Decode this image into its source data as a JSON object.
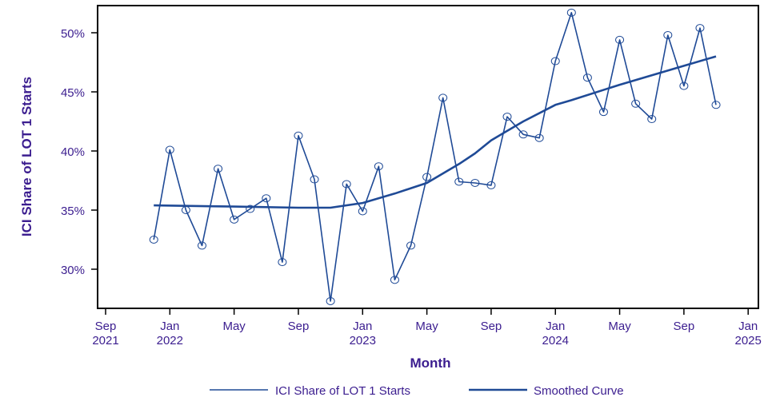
{
  "chart_data": {
    "type": "line",
    "title": "",
    "xlabel": "Month",
    "ylabel": "ICI Share of LOT 1 Starts",
    "x_ticks": [
      {
        "month": "2021-09",
        "label1": "Sep",
        "label2": "2021"
      },
      {
        "month": "2022-01",
        "label1": "Jan",
        "label2": "2022"
      },
      {
        "month": "2022-05",
        "label1": "May",
        "label2": ""
      },
      {
        "month": "2022-09",
        "label1": "Sep",
        "label2": ""
      },
      {
        "month": "2023-01",
        "label1": "Jan",
        "label2": "2023"
      },
      {
        "month": "2023-05",
        "label1": "May",
        "label2": ""
      },
      {
        "month": "2023-09",
        "label1": "Sep",
        "label2": ""
      },
      {
        "month": "2024-01",
        "label1": "Jan",
        "label2": "2024"
      },
      {
        "month": "2024-05",
        "label1": "May",
        "label2": ""
      },
      {
        "month": "2024-09",
        "label1": "Sep",
        "label2": ""
      },
      {
        "month": "2025-01",
        "label1": "Jan",
        "label2": "2025"
      }
    ],
    "y_ticks": [
      30,
      35,
      40,
      45,
      50
    ],
    "y_tick_labels": [
      "30%",
      "35%",
      "40%",
      "45%",
      "50%"
    ],
    "ylim": [
      26.7,
      52.3
    ],
    "xlim": [
      "2021-08",
      "2025-01"
    ],
    "grid": false,
    "legend_position": "bottom",
    "colors": {
      "text": "#3b1d8f",
      "series": "#1f4a96",
      "axis": "#000000"
    },
    "series": [
      {
        "name": "ICI Share of LOT 1 Starts",
        "marker": "circle",
        "x": [
          "2021-12",
          "2022-01",
          "2022-02",
          "2022-03",
          "2022-04",
          "2022-05",
          "2022-06",
          "2022-07",
          "2022-08",
          "2022-09",
          "2022-10",
          "2022-11",
          "2022-12",
          "2023-01",
          "2023-02",
          "2023-03",
          "2023-04",
          "2023-05",
          "2023-06",
          "2023-07",
          "2023-08",
          "2023-09",
          "2023-10",
          "2023-11",
          "2023-12",
          "2024-01",
          "2024-02",
          "2024-03",
          "2024-04",
          "2024-05",
          "2024-06",
          "2024-07",
          "2024-08",
          "2024-09",
          "2024-10",
          "2024-11"
        ],
        "values": [
          32.5,
          40.1,
          35.0,
          32.0,
          38.5,
          34.2,
          35.1,
          36.0,
          30.6,
          41.3,
          37.6,
          27.3,
          37.2,
          34.9,
          38.7,
          29.1,
          32.0,
          37.8,
          44.5,
          37.4,
          37.3,
          37.1,
          42.9,
          41.4,
          41.1,
          47.6,
          51.7,
          46.2,
          43.3,
          49.4,
          44.0,
          42.7,
          49.8,
          45.5,
          50.4,
          43.9
        ]
      },
      {
        "name": "Smoothed Curve",
        "marker": "none",
        "x": [
          "2021-12",
          "2022-05",
          "2022-09",
          "2022-11",
          "2023-01",
          "2023-03",
          "2023-05",
          "2023-07",
          "2023-08",
          "2023-09",
          "2023-11",
          "2024-01",
          "2024-02",
          "2024-05",
          "2024-07",
          "2024-09",
          "2024-11"
        ],
        "values": [
          35.4,
          35.3,
          35.2,
          35.2,
          35.6,
          36.4,
          37.3,
          38.9,
          39.8,
          40.9,
          42.5,
          43.9,
          44.3,
          45.6,
          46.4,
          47.2,
          48.0
        ]
      }
    ]
  }
}
